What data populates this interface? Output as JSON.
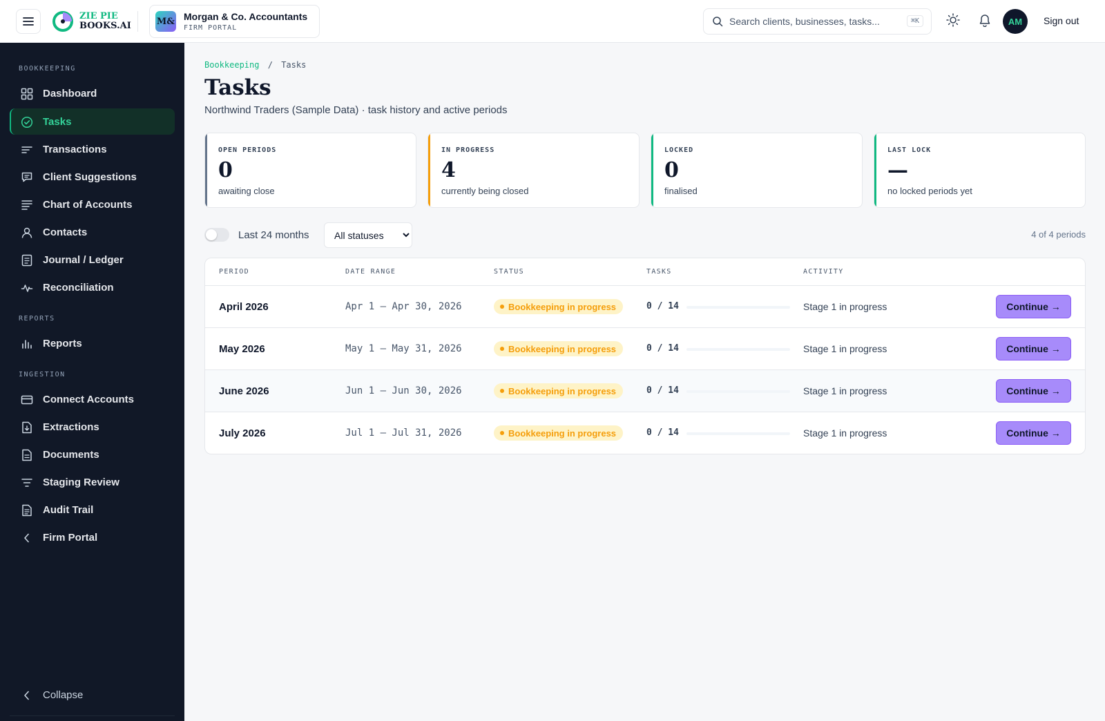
{
  "header": {
    "logo_line1": "ZIE PIE",
    "logo_line2": "BOOKS.AI",
    "firm_initials": "M&",
    "firm_name": "Morgan & Co. Accountants",
    "firm_subtitle": "FIRM PORTAL",
    "search_placeholder": "Search clients, businesses, tasks...",
    "search_shortcut": "⌘K",
    "avatar_initials": "AM",
    "sign_out": "Sign out"
  },
  "sidebar": {
    "sections": {
      "bookkeeping": "BOOKKEEPING",
      "reports": "REPORTS",
      "ingestion": "INGESTION"
    },
    "items": [
      {
        "label": "Dashboard",
        "icon": "grid-icon"
      },
      {
        "label": "Tasks",
        "icon": "check-circle-icon",
        "active": true
      },
      {
        "label": "Transactions",
        "icon": "lines-icon"
      },
      {
        "label": "Client Suggestions",
        "icon": "message-icon"
      },
      {
        "label": "Chart of Accounts",
        "icon": "list-icon"
      },
      {
        "label": "Contacts",
        "icon": "user-icon"
      },
      {
        "label": "Journal / Ledger",
        "icon": "journal-icon"
      },
      {
        "label": "Reconciliation",
        "icon": "pulse-icon"
      },
      {
        "label": "Reports",
        "icon": "bar-chart-icon"
      },
      {
        "label": "Connect Accounts",
        "icon": "card-icon"
      },
      {
        "label": "Extractions",
        "icon": "download-file-icon"
      },
      {
        "label": "Documents",
        "icon": "document-icon"
      },
      {
        "label": "Staging Review",
        "icon": "filter-icon"
      },
      {
        "label": "Audit Trail",
        "icon": "file-text-icon"
      },
      {
        "label": "Firm Portal",
        "icon": "chevron-left-icon"
      }
    ],
    "collapse": "Collapse"
  },
  "breadcrumb": {
    "parent": "Bookkeeping",
    "separator": "/",
    "current": "Tasks"
  },
  "page": {
    "title": "Tasks",
    "subtitle": "Northwind Traders (Sample Data) · task history and active periods"
  },
  "stats": [
    {
      "label": "OPEN PERIODS",
      "value": "0",
      "note": "awaiting close",
      "color": "#64748b"
    },
    {
      "label": "IN PROGRESS",
      "value": "4",
      "note": "currently being closed",
      "color": "#f59e0b"
    },
    {
      "label": "LOCKED",
      "value": "0",
      "note": "finalised",
      "color": "#10b981"
    },
    {
      "label": "LAST LOCK",
      "value": "—",
      "note": "no locked periods yet",
      "color": "#10b981"
    }
  ],
  "filters": {
    "toggle_label": "Last 24 months",
    "toggle_on": false,
    "status_selected": "All statuses",
    "count": "4 of 4 periods"
  },
  "table": {
    "columns": [
      "PERIOD",
      "DATE RANGE",
      "STATUS",
      "TASKS",
      "ACTIVITY"
    ],
    "rows": [
      {
        "period": "April 2026",
        "range": "Apr 1 – Apr 30, 2026",
        "status": "Bookkeeping in progress",
        "tasks": "0 / 14",
        "progress": 0,
        "activity": "Stage 1 in progress",
        "action": "Continue →"
      },
      {
        "period": "May 2026",
        "range": "May 1 – May 31, 2026",
        "status": "Bookkeeping in progress",
        "tasks": "0 / 14",
        "progress": 0,
        "activity": "Stage 1 in progress",
        "action": "Continue →"
      },
      {
        "period": "June 2026",
        "range": "Jun 1 – Jun 30, 2026",
        "status": "Bookkeeping in progress",
        "tasks": "0 / 14",
        "progress": 0,
        "activity": "Stage 1 in progress",
        "action": "Continue →"
      },
      {
        "period": "July 2026",
        "range": "Jul 1 – Jul 31, 2026",
        "status": "Bookkeeping in progress",
        "tasks": "0 / 14",
        "progress": 0,
        "activity": "Stage 1 in progress",
        "action": "Continue →"
      }
    ]
  }
}
